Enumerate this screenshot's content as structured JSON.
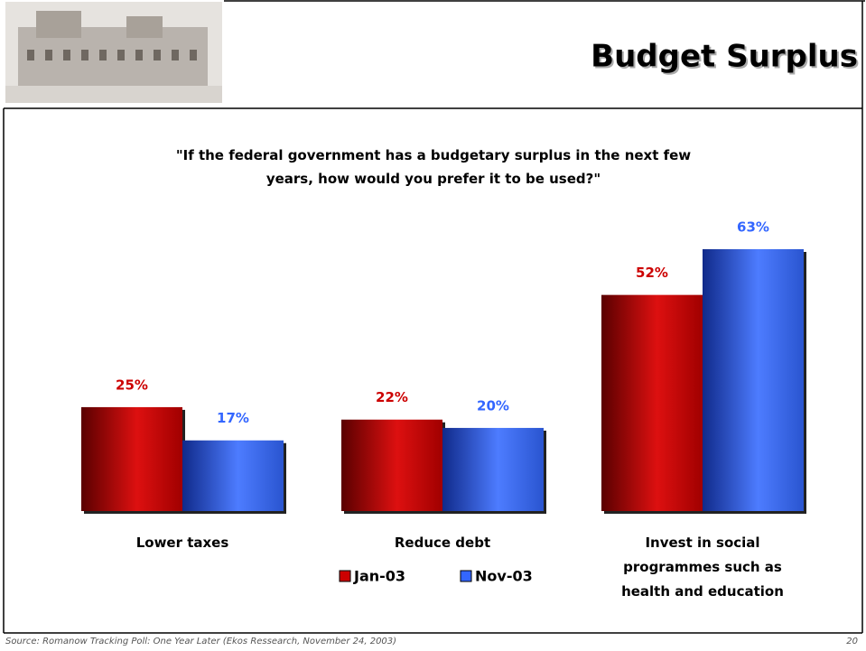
{
  "header": {
    "title": "Budget Surplus"
  },
  "chart_data": {
    "type": "bar",
    "title": "\"If the federal government has a budgetary surplus in the next few years, how would you prefer it to be used?\"",
    "categories": [
      "Lower taxes",
      "Reduce debt",
      "Invest in social programmes such as health and education"
    ],
    "series": [
      {
        "name": "Jan-03",
        "color": "#cc0000",
        "values": [
          25,
          22,
          52
        ],
        "value_labels": [
          "25%",
          "22%",
          "52%"
        ]
      },
      {
        "name": "Nov-03",
        "color": "#3366ff",
        "values": [
          17,
          20,
          63
        ],
        "value_labels": [
          "17%",
          "20%",
          "63%"
        ]
      }
    ],
    "legend": "bottom"
  },
  "footer": {
    "source": "Source: Romanow Tracking Poll:  One Year Later (Ekos Ressearch, November 24, 2003)",
    "page": "20"
  }
}
